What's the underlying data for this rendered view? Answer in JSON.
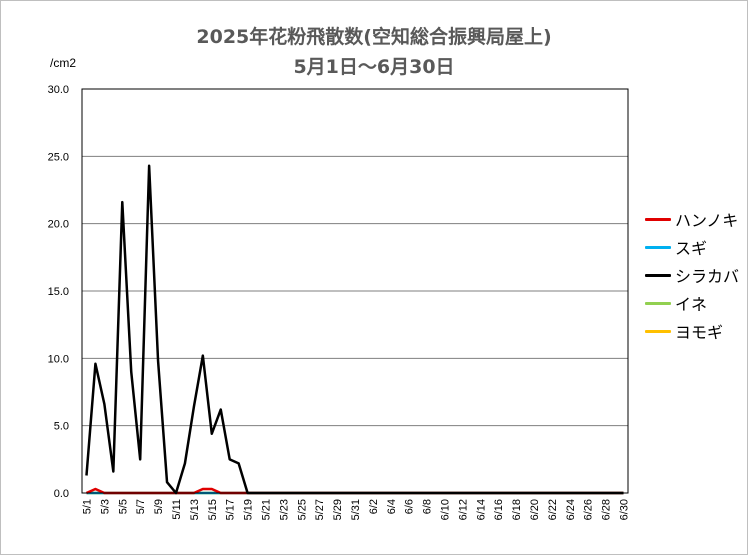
{
  "chart_data": {
    "type": "line",
    "title": "2025年花粉飛散数(空知総合振興局屋上)",
    "subtitle": "5月1日～6月30日",
    "ylabel": "/cm2",
    "xlabel": "",
    "ylim": [
      0,
      30
    ],
    "yticks": [
      "0.0",
      "5.0",
      "10.0",
      "15.0",
      "20.0",
      "25.0",
      "30.0"
    ],
    "grid": true,
    "legend_position": "right",
    "categories": [
      "5/1",
      "5/2",
      "5/3",
      "5/4",
      "5/5",
      "5/6",
      "5/7",
      "5/8",
      "5/9",
      "5/10",
      "5/11",
      "5/12",
      "5/13",
      "5/14",
      "5/15",
      "5/16",
      "5/17",
      "5/18",
      "5/19",
      "5/20",
      "5/21",
      "5/22",
      "5/23",
      "5/24",
      "5/25",
      "5/26",
      "5/27",
      "5/28",
      "5/29",
      "5/30",
      "5/31",
      "6/1",
      "6/2",
      "6/3",
      "6/4",
      "6/5",
      "6/6",
      "6/7",
      "6/8",
      "6/9",
      "6/10",
      "6/11",
      "6/12",
      "6/13",
      "6/14",
      "6/15",
      "6/16",
      "6/17",
      "6/18",
      "6/19",
      "6/20",
      "6/21",
      "6/22",
      "6/23",
      "6/24",
      "6/25",
      "6/26",
      "6/27",
      "6/28",
      "6/29",
      "6/30"
    ],
    "xtick_labels": [
      "5/1",
      "5/3",
      "5/5",
      "5/7",
      "5/9",
      "5/11",
      "5/13",
      "5/15",
      "5/17",
      "5/19",
      "5/21",
      "5/23",
      "5/25",
      "5/27",
      "5/29",
      "5/31",
      "6/2",
      "6/4",
      "6/6",
      "6/8",
      "6/10",
      "6/12",
      "6/14",
      "6/16",
      "6/18",
      "6/20",
      "6/22",
      "6/24",
      "6/26",
      "6/28",
      "6/30"
    ],
    "series": [
      {
        "name": "ハンノキ",
        "color": "#e00000",
        "values": [
          0,
          0.3,
          0,
          0,
          0,
          0,
          0,
          0,
          0,
          0,
          0,
          0,
          0,
          0.3,
          0.3,
          0,
          0,
          0,
          0,
          0,
          0,
          0,
          0,
          0,
          0,
          0,
          0,
          0,
          0,
          0,
          0,
          0,
          0,
          0,
          0,
          0,
          0,
          0,
          0,
          0,
          0,
          0,
          0,
          0,
          0,
          0,
          0,
          0,
          0,
          0,
          0,
          0,
          0,
          0,
          0,
          0,
          0,
          0,
          0,
          0,
          0
        ]
      },
      {
        "name": "スギ",
        "color": "#00b0f0",
        "values": [
          0,
          0,
          0,
          0,
          0,
          0,
          0,
          0,
          0,
          0,
          0,
          0,
          0,
          0,
          0,
          0,
          0,
          0,
          0,
          0,
          0,
          0,
          0,
          0,
          0,
          0,
          0,
          0,
          0,
          0,
          0,
          0,
          0,
          0,
          0,
          0,
          0,
          0,
          0,
          0,
          0,
          0,
          0,
          0,
          0,
          0,
          0,
          0,
          0,
          0,
          0,
          0,
          0,
          0,
          0,
          0,
          0,
          0,
          0,
          0,
          0
        ]
      },
      {
        "name": "シラカバ",
        "color": "#000000",
        "values": [
          1.3,
          9.6,
          6.6,
          1.6,
          21.6,
          9.0,
          2.5,
          24.3,
          9.8,
          0.8,
          0,
          2.2,
          6.4,
          10.2,
          4.4,
          6.2,
          2.5,
          2.2,
          0,
          0,
          0,
          0,
          0,
          0,
          0,
          0,
          0,
          0,
          0,
          0,
          0,
          0,
          0,
          0,
          0,
          0,
          0,
          0,
          0,
          0,
          0,
          0,
          0,
          0,
          0,
          0,
          0,
          0,
          0,
          0,
          0,
          0,
          0,
          0,
          0,
          0,
          0,
          0,
          0,
          0,
          0
        ]
      },
      {
        "name": "イネ",
        "color": "#92d050",
        "values": [
          0,
          0,
          0,
          0,
          0,
          0,
          0,
          0,
          0,
          0,
          0,
          0,
          0,
          0,
          0,
          0,
          0,
          0,
          0,
          0,
          0,
          0,
          0,
          0,
          0,
          0,
          0,
          0,
          0,
          0,
          0,
          0,
          0,
          0,
          0,
          0,
          0,
          0,
          0,
          0,
          0,
          0,
          0,
          0,
          0,
          0,
          0,
          0,
          0,
          0,
          0,
          0,
          0,
          0,
          0,
          0,
          0,
          0,
          0,
          0,
          0
        ]
      },
      {
        "name": "ヨモギ",
        "color": "#ffc000",
        "values": [
          0,
          0,
          0,
          0,
          0,
          0,
          0,
          0,
          0,
          0,
          0,
          0,
          0,
          0,
          0,
          0,
          0,
          0,
          0,
          0,
          0,
          0,
          0,
          0,
          0,
          0,
          0,
          0,
          0,
          0,
          0,
          0,
          0,
          0,
          0,
          0,
          0,
          0,
          0,
          0,
          0,
          0,
          0,
          0,
          0,
          0,
          0,
          0,
          0,
          0,
          0,
          0,
          0,
          0,
          0,
          0,
          0,
          0,
          0,
          0,
          0
        ]
      }
    ]
  }
}
